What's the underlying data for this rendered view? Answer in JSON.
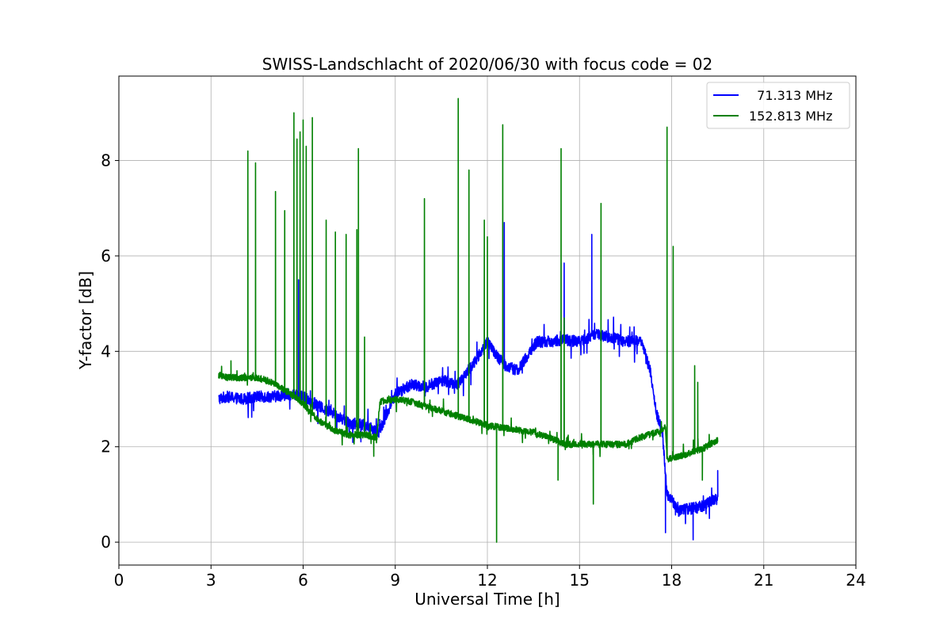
{
  "chart_data": {
    "type": "line",
    "title": "SWISS-Landschlacht of 2020/06/30 with focus code = 02",
    "xlabel": "Universal Time [h]",
    "ylabel": "Y-factor [dB]",
    "xlim": [
      0,
      24
    ],
    "ylim": [
      -0.48,
      9.77
    ],
    "xticks": [
      0,
      3,
      6,
      9,
      12,
      15,
      18,
      21,
      24
    ],
    "yticks": [
      0,
      2,
      4,
      6,
      8
    ],
    "grid": true,
    "legend_position": "top-right",
    "series": [
      {
        "name": "  71.313 MHz",
        "color": "#0000ff",
        "baseline": [
          [
            3.25,
            3.0
          ],
          [
            3.5,
            3.05
          ],
          [
            4.0,
            3.0
          ],
          [
            4.5,
            3.05
          ],
          [
            5.0,
            3.05
          ],
          [
            5.5,
            3.1
          ],
          [
            6.0,
            3.05
          ],
          [
            6.5,
            2.85
          ],
          [
            7.0,
            2.7
          ],
          [
            7.5,
            2.5
          ],
          [
            8.0,
            2.45
          ],
          [
            8.3,
            2.35
          ],
          [
            8.45,
            2.3
          ],
          [
            8.6,
            2.5
          ],
          [
            9.0,
            3.1
          ],
          [
            9.5,
            3.3
          ],
          [
            10.0,
            3.25
          ],
          [
            10.5,
            3.4
          ],
          [
            11.0,
            3.3
          ],
          [
            11.5,
            3.7
          ],
          [
            12.0,
            4.2
          ],
          [
            12.3,
            3.9
          ],
          [
            12.6,
            3.7
          ],
          [
            13.0,
            3.6
          ],
          [
            13.3,
            3.9
          ],
          [
            13.6,
            4.2
          ],
          [
            14.0,
            4.2
          ],
          [
            14.5,
            4.25
          ],
          [
            15.0,
            4.2
          ],
          [
            15.5,
            4.35
          ],
          [
            16.0,
            4.3
          ],
          [
            16.5,
            4.2
          ],
          [
            17.0,
            4.25
          ],
          [
            17.3,
            3.6
          ],
          [
            17.5,
            2.7
          ],
          [
            17.7,
            2.3
          ],
          [
            17.85,
            1.0
          ],
          [
            18.0,
            0.9
          ],
          [
            18.2,
            0.65
          ],
          [
            18.5,
            0.7
          ],
          [
            19.0,
            0.75
          ],
          [
            19.5,
            0.95
          ]
        ],
        "noise": 0.12,
        "spikes": [
          [
            5.85,
            5.5
          ],
          [
            12.55,
            6.7
          ],
          [
            14.5,
            5.85
          ],
          [
            15.4,
            6.45
          ],
          [
            17.8,
            0.2
          ],
          [
            18.7,
            0.05
          ],
          [
            19.5,
            1.5
          ]
        ]
      },
      {
        "name": "152.813 MHz",
        "color": "#008000",
        "baseline": [
          [
            3.25,
            3.5
          ],
          [
            3.5,
            3.45
          ],
          [
            4.0,
            3.45
          ],
          [
            4.5,
            3.45
          ],
          [
            5.0,
            3.35
          ],
          [
            5.5,
            3.15
          ],
          [
            6.0,
            2.9
          ],
          [
            6.5,
            2.55
          ],
          [
            7.0,
            2.35
          ],
          [
            7.5,
            2.25
          ],
          [
            8.0,
            2.25
          ],
          [
            8.4,
            2.2
          ],
          [
            8.5,
            2.95
          ],
          [
            9.0,
            3.0
          ],
          [
            9.5,
            2.95
          ],
          [
            10.0,
            2.85
          ],
          [
            10.5,
            2.75
          ],
          [
            11.0,
            2.65
          ],
          [
            11.5,
            2.55
          ],
          [
            12.0,
            2.45
          ],
          [
            12.5,
            2.4
          ],
          [
            13.0,
            2.35
          ],
          [
            13.5,
            2.3
          ],
          [
            14.0,
            2.2
          ],
          [
            14.5,
            2.05
          ],
          [
            15.0,
            2.05
          ],
          [
            15.5,
            2.05
          ],
          [
            16.0,
            2.05
          ],
          [
            16.5,
            2.05
          ],
          [
            17.0,
            2.2
          ],
          [
            17.5,
            2.3
          ],
          [
            17.8,
            2.4
          ],
          [
            17.85,
            1.75
          ],
          [
            18.0,
            1.75
          ],
          [
            18.5,
            1.85
          ],
          [
            19.0,
            1.95
          ],
          [
            19.5,
            2.15
          ]
        ],
        "noise": 0.07,
        "spikes": [
          [
            3.65,
            3.8
          ],
          [
            4.2,
            8.2
          ],
          [
            4.45,
            7.95
          ],
          [
            5.1,
            7.35
          ],
          [
            5.4,
            6.95
          ],
          [
            5.7,
            9.0
          ],
          [
            5.8,
            8.45
          ],
          [
            5.9,
            8.6
          ],
          [
            6.0,
            8.85
          ],
          [
            6.1,
            8.3
          ],
          [
            6.3,
            8.9
          ],
          [
            6.75,
            6.75
          ],
          [
            7.05,
            6.5
          ],
          [
            7.4,
            6.45
          ],
          [
            7.75,
            6.55
          ],
          [
            7.8,
            8.25
          ],
          [
            8.0,
            4.3
          ],
          [
            8.3,
            1.8
          ],
          [
            9.95,
            7.2
          ],
          [
            11.05,
            9.3
          ],
          [
            11.4,
            7.8
          ],
          [
            11.9,
            6.75
          ],
          [
            12.0,
            6.4
          ],
          [
            12.3,
            0.0
          ],
          [
            12.5,
            8.75
          ],
          [
            14.3,
            1.3
          ],
          [
            14.4,
            8.25
          ],
          [
            14.5,
            4.7
          ],
          [
            15.45,
            0.8
          ],
          [
            15.7,
            7.1
          ],
          [
            17.85,
            8.7
          ],
          [
            18.05,
            6.2
          ],
          [
            18.75,
            3.7
          ],
          [
            18.85,
            3.35
          ],
          [
            19.0,
            1.3
          ]
        ]
      }
    ]
  }
}
